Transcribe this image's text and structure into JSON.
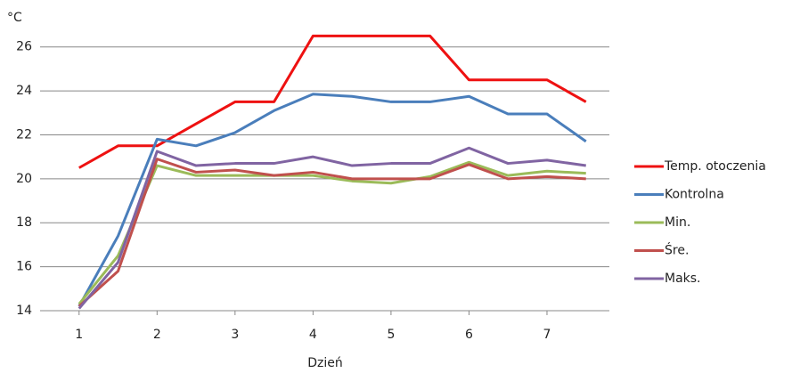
{
  "chart_data": {
    "type": "line",
    "y_label": "°C",
    "x_label": "Dzień",
    "x": [
      1,
      1.5,
      2,
      2.5,
      3,
      3.5,
      4,
      4.5,
      5,
      5.5,
      6,
      6.5,
      7,
      7.5
    ],
    "xlim": [
      0.5,
      7.8
    ],
    "xticks": [
      1,
      2,
      3,
      4,
      5,
      6,
      7
    ],
    "ylim": [
      14,
      27
    ],
    "yticks": [
      14,
      16,
      18,
      20,
      22,
      24,
      26
    ],
    "grid": true,
    "legend": "right",
    "series": [
      {
        "name": "Temp. otoczenia",
        "color": "#ee1111",
        "values": [
          20.5,
          21.5,
          21.5,
          22.5,
          23.5,
          23.5,
          26.5,
          26.5,
          26.5,
          26.5,
          24.5,
          24.5,
          24.5,
          23.5
        ]
      },
      {
        "name": "Kontrolna",
        "color": "#4a7ebb",
        "values": [
          14.2,
          17.4,
          21.8,
          21.5,
          22.1,
          23.1,
          23.85,
          23.75,
          23.5,
          23.5,
          23.75,
          22.95,
          22.95,
          21.7
        ]
      },
      {
        "name": "Min.",
        "color": "#9bbb59",
        "values": [
          14.3,
          16.5,
          20.6,
          20.15,
          20.15,
          20.15,
          20.15,
          19.9,
          19.8,
          20.1,
          20.75,
          20.15,
          20.35,
          20.25
        ]
      },
      {
        "name": "Śre.",
        "color": "#c0504d",
        "values": [
          14.2,
          15.8,
          20.9,
          20.3,
          20.4,
          20.15,
          20.3,
          20.0,
          20.0,
          20.0,
          20.65,
          20.0,
          20.1,
          20.0
        ]
      },
      {
        "name": "Maks.",
        "color": "#8064a2",
        "values": [
          14.1,
          16.2,
          21.25,
          20.6,
          20.7,
          20.7,
          21.0,
          20.6,
          20.7,
          20.7,
          21.4,
          20.7,
          20.85,
          20.6
        ]
      }
    ]
  }
}
